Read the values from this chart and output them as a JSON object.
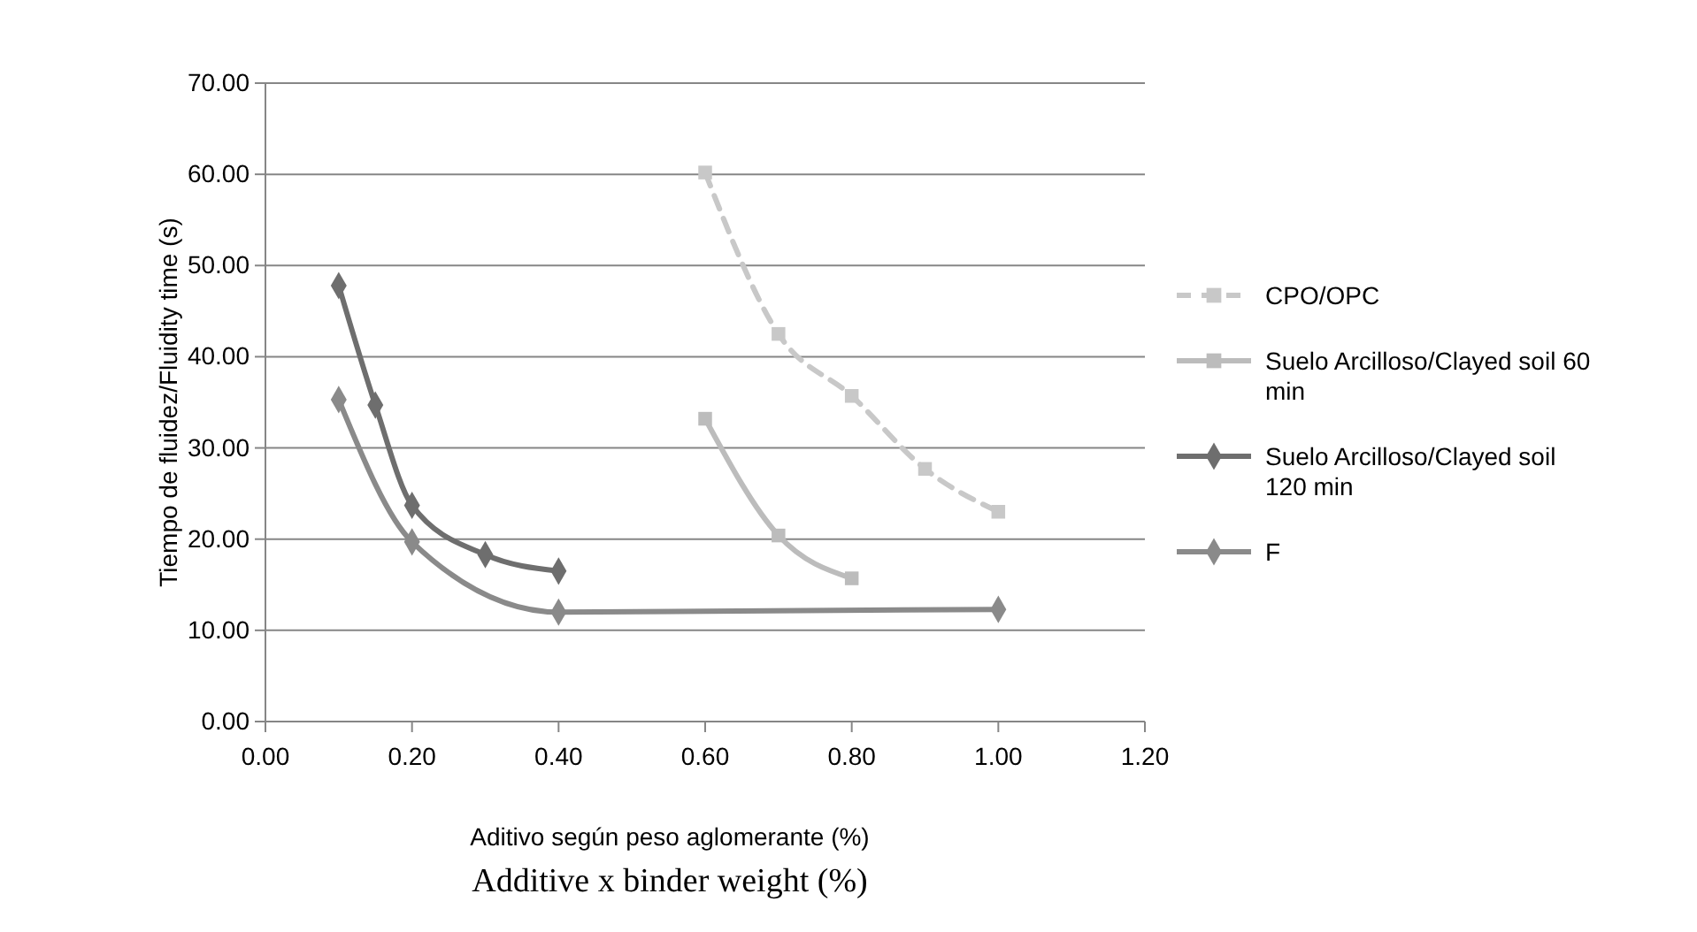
{
  "chart_data": {
    "type": "line",
    "ylabel": "Tiempo de fluidez/Fluidity time  (s)",
    "xlabel": "Aditivo según peso aglomerante (%)",
    "annotations": [
      "Additive x binder weight (%)"
    ],
    "xlim": [
      0,
      1.2
    ],
    "xticks": [
      {
        "value": 0,
        "label": "0.00"
      },
      {
        "value": 0.2,
        "label": "0.20"
      },
      {
        "value": 0.4,
        "label": "0.40"
      },
      {
        "value": 0.6,
        "label": "0.60"
      },
      {
        "value": 0.8,
        "label": "0.80"
      },
      {
        "value": 1,
        "label": "1.00"
      },
      {
        "value": 1.2,
        "label": "1.20"
      }
    ],
    "ylim": [
      0,
      70
    ],
    "yticks": [
      {
        "value": 0,
        "label": "0.00"
      },
      {
        "value": 10,
        "label": "10.00"
      },
      {
        "value": 20,
        "label": "20.00"
      },
      {
        "value": 30,
        "label": "30.00"
      },
      {
        "value": 40,
        "label": "40.00"
      },
      {
        "value": 50,
        "label": "50.00"
      },
      {
        "value": 60,
        "label": "60.00"
      },
      {
        "value": 70,
        "label": "70.00"
      }
    ],
    "grid": "y",
    "legend": "right",
    "series": [
      {
        "name": "CPO/OPC",
        "color": "#c8c8c8",
        "marker": "square",
        "line_style": "dashed",
        "x": [
          0.6,
          0.7,
          0.8,
          0.9,
          1.0
        ],
        "values": [
          60.2,
          42.5,
          35.7,
          27.7,
          23.0
        ]
      },
      {
        "name": "Suelo Arcilloso/Clayed soil 60 min",
        "color": "#bcbcbc",
        "marker": "square",
        "line_style": "solid",
        "x": [
          0.6,
          0.7,
          0.8
        ],
        "values": [
          33.2,
          20.4,
          15.7
        ]
      },
      {
        "name": "Suelo Arcilloso/Clayed soil 120 min",
        "color": "#6e6e6e",
        "marker": "diamond",
        "line_style": "solid",
        "x": [
          0.1,
          0.15,
          0.2,
          0.3,
          0.4
        ],
        "values": [
          47.8,
          34.7,
          23.7,
          18.3,
          16.5
        ]
      },
      {
        "name": "F",
        "color": "#8a8a8a",
        "marker": "diamond",
        "line_style": "solid",
        "x": [
          0.1,
          0.2,
          0.4,
          1.0
        ],
        "values": [
          35.3,
          19.7,
          12.0,
          12.3
        ]
      }
    ]
  }
}
